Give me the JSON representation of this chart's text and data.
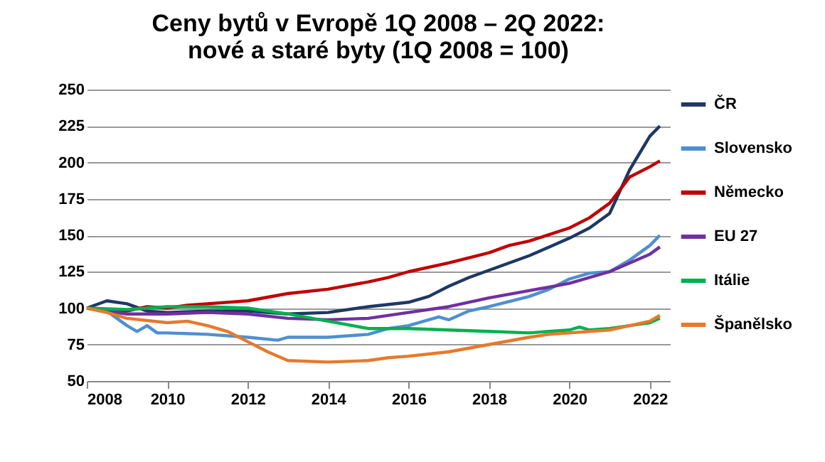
{
  "chart_data": {
    "type": "line",
    "title": "Ceny bytů v Evropě 1Q 2008 – 2Q 2022:\nnové a staré byty (1Q 2008 = 100)",
    "xlim": [
      2008,
      2022.5
    ],
    "xticks": [
      2008,
      2010,
      2012,
      2014,
      2016,
      2018,
      2020,
      2022
    ],
    "ylim": [
      50,
      250
    ],
    "yticks": [
      50,
      75,
      100,
      125,
      150,
      175,
      200,
      225,
      250
    ],
    "grid": "y",
    "legend": "right",
    "series": [
      {
        "name": "ČR",
        "color": "#1f3864",
        "x": [
          2008,
          2008.5,
          2009,
          2009.5,
          2010,
          2011,
          2012,
          2013,
          2014,
          2015,
          2016,
          2016.5,
          2017,
          2017.5,
          2018,
          2019,
          2019.5,
          2020,
          2020.5,
          2021,
          2021.5,
          2022,
          2022.25
        ],
        "values": [
          100,
          105,
          103,
          98,
          97,
          98,
          98,
          96,
          97,
          101,
          104,
          108,
          115,
          121,
          126,
          136,
          142,
          148,
          155,
          165,
          195,
          218,
          225
        ]
      },
      {
        "name": "Slovensko",
        "color": "#4f8fd0",
        "x": [
          2008,
          2008.5,
          2009,
          2009.25,
          2009.5,
          2009.75,
          2010,
          2011,
          2012,
          2012.75,
          2013,
          2014,
          2015,
          2015.5,
          2016,
          2016.75,
          2017,
          2017.5,
          2018,
          2019,
          2019.5,
          2020,
          2020.5,
          2021,
          2021.5,
          2022,
          2022.25
        ],
        "values": [
          100,
          98,
          88,
          84,
          88,
          83,
          83,
          82,
          80,
          78,
          80,
          80,
          82,
          86,
          88,
          94,
          92,
          98,
          101,
          108,
          113,
          120,
          124,
          125,
          133,
          143,
          150
        ]
      },
      {
        "name": "Německo",
        "color": "#c00000",
        "x": [
          2008,
          2009,
          2009.5,
          2010,
          2010.5,
          2011,
          2012,
          2013,
          2014,
          2015,
          2015.5,
          2016,
          2017,
          2018,
          2018.5,
          2019,
          2020,
          2020.5,
          2021,
          2021.5,
          2022,
          2022.25
        ],
        "values": [
          100,
          98,
          101,
          100,
          102,
          103,
          105,
          110,
          113,
          118,
          121,
          125,
          131,
          138,
          143,
          146,
          155,
          162,
          172,
          190,
          197,
          201
        ]
      },
      {
        "name": "EU 27",
        "color": "#7030a0",
        "x": [
          2008,
          2009,
          2010,
          2011,
          2012,
          2013,
          2014,
          2015,
          2016,
          2017,
          2018,
          2019,
          2020,
          2021,
          2021.5,
          2022,
          2022.25
        ],
        "values": [
          100,
          96,
          96,
          97,
          96,
          93,
          92,
          93,
          97,
          101,
          107,
          112,
          117,
          125,
          131,
          137,
          142
        ]
      },
      {
        "name": "Itálie",
        "color": "#00b050",
        "x": [
          2008,
          2009,
          2010,
          2011,
          2012,
          2013,
          2014,
          2015,
          2016,
          2017,
          2018,
          2019,
          2020,
          2020.25,
          2020.5,
          2021,
          2021.5,
          2022,
          2022.25
        ],
        "values": [
          100,
          99,
          101,
          101,
          100,
          96,
          91,
          86,
          86,
          85,
          84,
          83,
          85,
          87,
          85,
          86,
          88,
          90,
          93
        ]
      },
      {
        "name": "Španělsko",
        "color": "#e7792b",
        "x": [
          2008,
          2008.5,
          2009,
          2010,
          2010.5,
          2011,
          2011.5,
          2012,
          2012.5,
          2013,
          2014,
          2015,
          2015.5,
          2016,
          2017,
          2018,
          2019,
          2019.5,
          2020,
          2021,
          2021.5,
          2022,
          2022.25
        ],
        "values": [
          100,
          97,
          93,
          90,
          91,
          88,
          84,
          77,
          70,
          64,
          63,
          64,
          66,
          67,
          70,
          75,
          80,
          82,
          83,
          85,
          88,
          91,
          95
        ]
      }
    ]
  }
}
